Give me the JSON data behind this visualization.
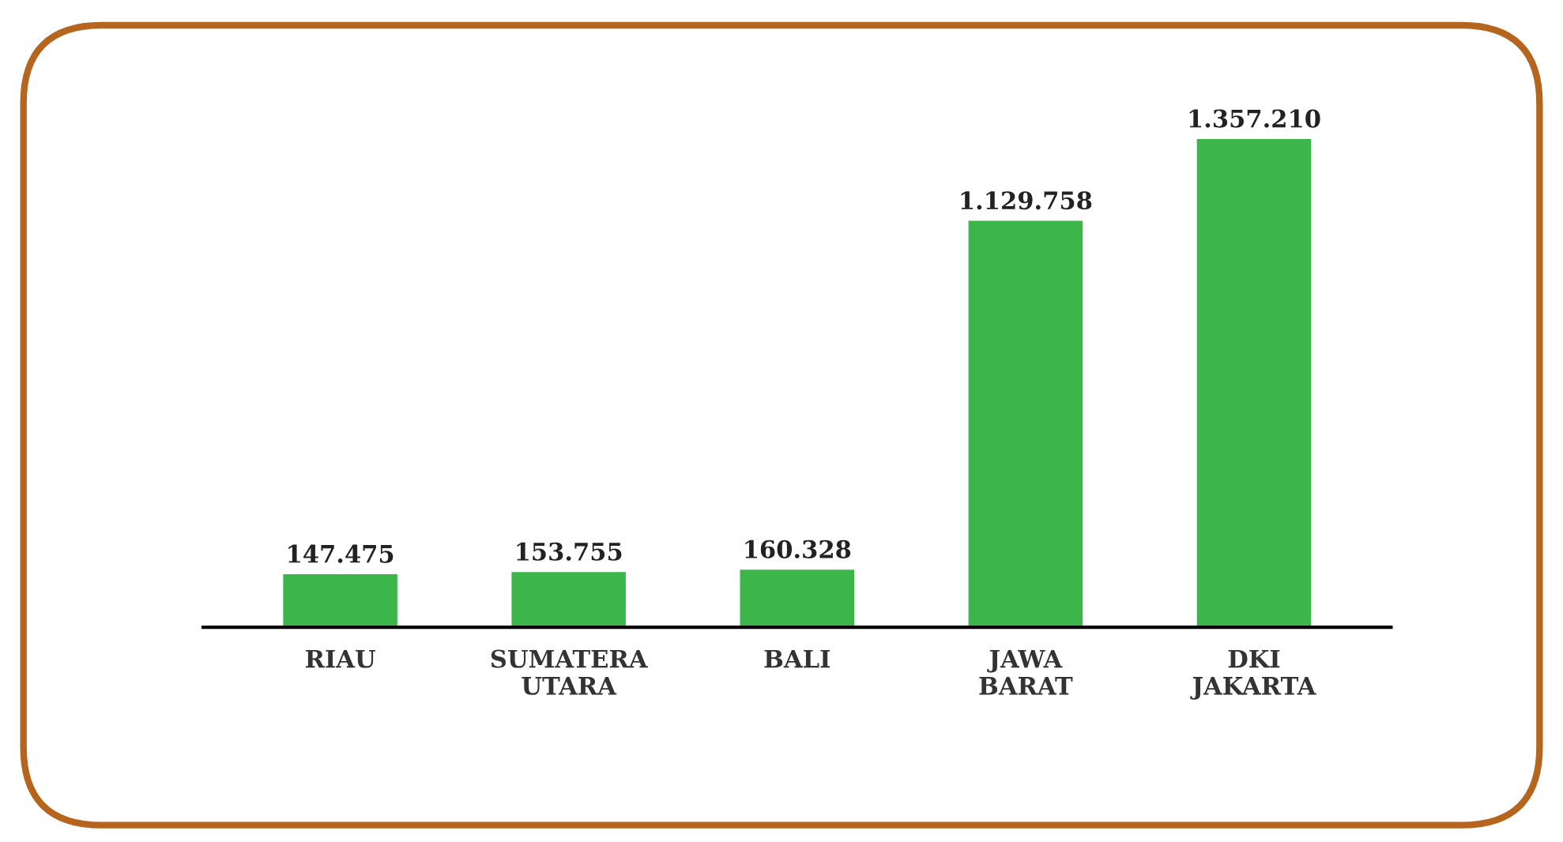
{
  "chart_data": {
    "type": "bar",
    "categories": [
      "RIAU",
      "SUMATERA\nUTARA",
      "BALI",
      "JAWA\nBARAT",
      "DKI\nJAKARTA"
    ],
    "values": [
      147475,
      153755,
      160328,
      1129758,
      1357210
    ],
    "value_labels": [
      "147.475",
      "153.755",
      "160.328",
      "1.129.758",
      "1.357.210"
    ],
    "color": "#3cb54a",
    "grid": false,
    "legend": false
  }
}
